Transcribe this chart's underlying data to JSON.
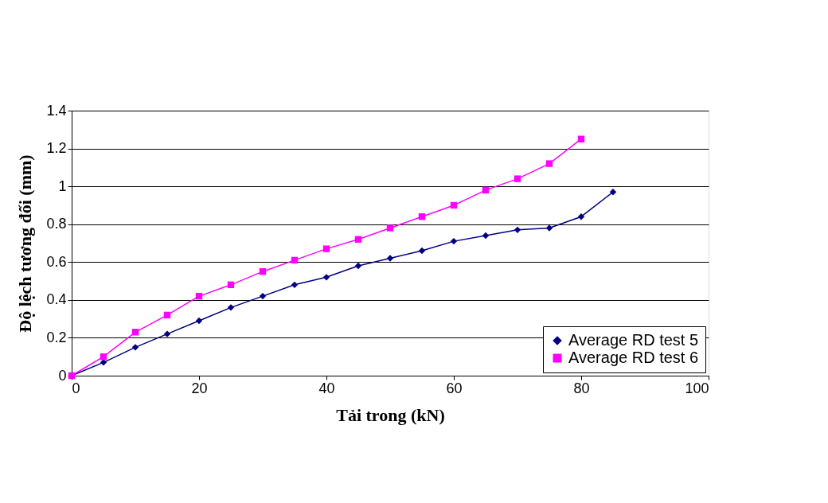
{
  "chart_data": {
    "type": "line",
    "xlabel": "Tải trong (kN)",
    "ylabel": "Độ lệch tương đối (mm)",
    "xlim": [
      0,
      100
    ],
    "xticks": [
      0,
      20,
      40,
      60,
      80,
      100
    ],
    "ylim": [
      0,
      1.4
    ],
    "yticks": [
      0,
      0.2,
      0.4,
      0.6,
      0.8,
      1,
      1.2,
      1.4
    ],
    "grid": "y",
    "legend": "bottom right",
    "line_style": "solid",
    "series": [
      {
        "name": "Average RD test 5",
        "color": "#000080",
        "marker": "diamond",
        "x": [
          0,
          5,
          10,
          15,
          20,
          25,
          30,
          35,
          40,
          45,
          50,
          55,
          60,
          65,
          70,
          75,
          80,
          85
        ],
        "values": [
          0,
          0.07,
          0.15,
          0.22,
          0.29,
          0.36,
          0.42,
          0.48,
          0.52,
          0.58,
          0.62,
          0.66,
          0.71,
          0.74,
          0.77,
          0.78,
          0.84,
          0.97
        ]
      },
      {
        "name": "Average RD test 6",
        "color": "#ff00ff",
        "marker": "square",
        "x": [
          0,
          5,
          10,
          15,
          20,
          25,
          30,
          35,
          40,
          45,
          50,
          55,
          60,
          65,
          70,
          75,
          80
        ],
        "values": [
          0,
          0.1,
          0.23,
          0.32,
          0.42,
          0.48,
          0.55,
          0.61,
          0.67,
          0.72,
          0.78,
          0.84,
          0.9,
          0.98,
          1.04,
          1.12,
          1.25
        ]
      }
    ]
  }
}
